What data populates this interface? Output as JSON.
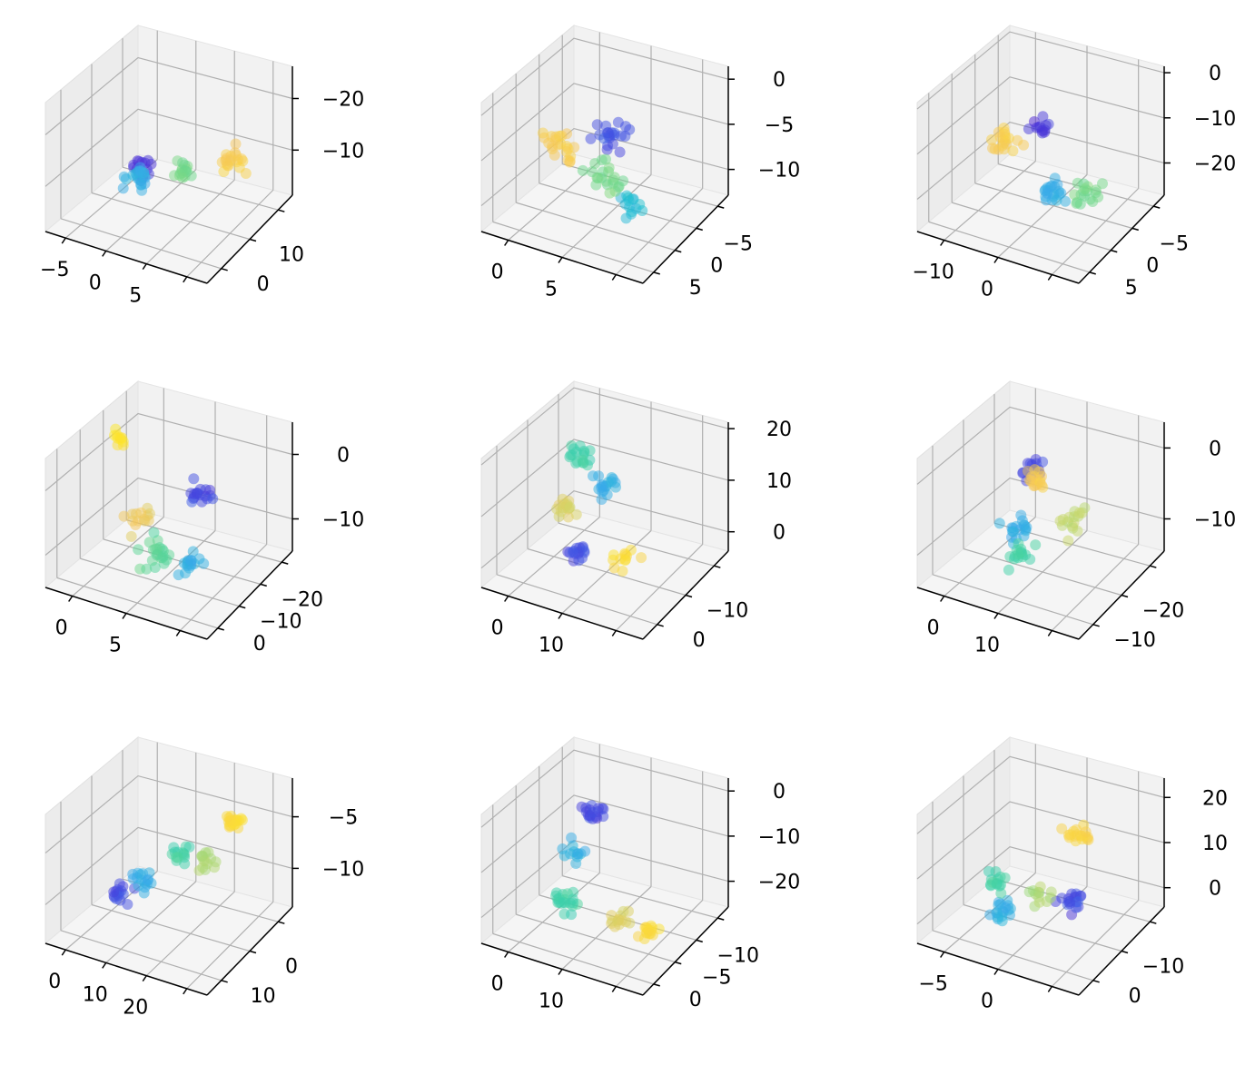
{
  "colormap": [
    "#4c1fd0",
    "#3f62e8",
    "#3fa2f0",
    "#1fc1d0",
    "#3fd1a6",
    "#7fd982",
    "#c8d86a",
    "#f6c65a",
    "#fde725"
  ],
  "chart_data": [
    {
      "type": "scatter3d",
      "title": "",
      "x_ticks": [
        "−5",
        "0",
        "5"
      ],
      "y_ticks": [
        "0",
        "10"
      ],
      "z_ticks": [
        "−10",
        "−20"
      ],
      "z_tick_levels": [
        0.35,
        0.75
      ],
      "seed": 11,
      "n_points": 70,
      "clusters": [
        {
          "c": 0.05,
          "x": 0.45,
          "y": 0.25,
          "z": 0.55,
          "s": 0.07,
          "n": 14
        },
        {
          "c": 0.3,
          "x": 0.35,
          "y": 0.35,
          "z": 0.35,
          "s": 0.07,
          "n": 20
        },
        {
          "c": 0.6,
          "x": 0.5,
          "y": 0.6,
          "z": 0.3,
          "s": 0.08,
          "n": 16
        },
        {
          "c": 0.9,
          "x": 0.75,
          "y": 0.75,
          "z": 0.4,
          "s": 0.07,
          "n": 20
        }
      ]
    },
    {
      "type": "scatter3d",
      "title": "",
      "x_ticks": [
        "0",
        "5"
      ],
      "y_ticks": [
        "5",
        "0",
        "−5"
      ],
      "z_ticks": [
        "0",
        "−5",
        "−10"
      ],
      "z_tick_levels": [
        0.9,
        0.55,
        0.2
      ],
      "seed": 23,
      "n_points": 80,
      "clusters": [
        {
          "c": 0.1,
          "x": 0.55,
          "y": 0.45,
          "z": 0.7,
          "s": 0.1,
          "n": 22
        },
        {
          "c": 0.35,
          "x": 0.75,
          "y": 0.3,
          "z": 0.35,
          "s": 0.08,
          "n": 14
        },
        {
          "c": 0.6,
          "x": 0.5,
          "y": 0.45,
          "z": 0.35,
          "s": 0.1,
          "n": 22
        },
        {
          "c": 0.9,
          "x": 0.2,
          "y": 0.5,
          "z": 0.45,
          "s": 0.1,
          "n": 22
        }
      ]
    },
    {
      "type": "scatter3d",
      "title": "",
      "x_ticks": [
        "−10",
        "0"
      ],
      "y_ticks": [
        "5",
        "0",
        "−5"
      ],
      "z_ticks": [
        "0",
        "−10",
        "−20"
      ],
      "z_tick_levels": [
        0.95,
        0.6,
        0.25
      ],
      "seed": 37,
      "n_points": 70,
      "clusters": [
        {
          "c": 0.05,
          "x": 0.5,
          "y": 0.45,
          "z": 0.75,
          "s": 0.06,
          "n": 12
        },
        {
          "c": 0.3,
          "x": 0.6,
          "y": 0.4,
          "z": 0.3,
          "s": 0.07,
          "n": 20
        },
        {
          "c": 0.6,
          "x": 0.75,
          "y": 0.5,
          "z": 0.3,
          "s": 0.08,
          "n": 18
        },
        {
          "c": 0.9,
          "x": 0.25,
          "y": 0.5,
          "z": 0.5,
          "s": 0.08,
          "n": 20
        }
      ]
    },
    {
      "type": "scatter3d",
      "title": "",
      "x_ticks": [
        "0",
        "5"
      ],
      "y_ticks": [
        "0",
        "−10",
        "−20"
      ],
      "z_ticks": [
        "0",
        "−10"
      ],
      "z_tick_levels": [
        0.75,
        0.25
      ],
      "seed": 41,
      "n_points": 80,
      "clusters": [
        {
          "c": 0.08,
          "x": 0.65,
          "y": 0.55,
          "z": 0.65,
          "s": 0.08,
          "n": 18
        },
        {
          "c": 0.3,
          "x": 0.7,
          "y": 0.35,
          "z": 0.25,
          "s": 0.08,
          "n": 16
        },
        {
          "c": 0.55,
          "x": 0.45,
          "y": 0.4,
          "z": 0.2,
          "s": 0.09,
          "n": 22
        },
        {
          "c": 0.85,
          "x": 0.3,
          "y": 0.5,
          "z": 0.35,
          "s": 0.08,
          "n": 14
        },
        {
          "c": 0.98,
          "x": 0.12,
          "y": 0.6,
          "z": 0.85,
          "s": 0.05,
          "n": 10
        }
      ]
    },
    {
      "type": "scatter3d",
      "title": "",
      "x_ticks": [
        "0",
        "10"
      ],
      "y_ticks": [
        "0",
        "−10"
      ],
      "z_ticks": [
        "20",
        "10",
        "0"
      ],
      "z_tick_levels": [
        0.95,
        0.55,
        0.15
      ],
      "seed": 53,
      "n_points": 80,
      "clusters": [
        {
          "c": 0.08,
          "x": 0.35,
          "y": 0.45,
          "z": 0.15,
          "s": 0.07,
          "n": 16
        },
        {
          "c": 0.3,
          "x": 0.45,
          "y": 0.55,
          "z": 0.65,
          "s": 0.08,
          "n": 18
        },
        {
          "c": 0.5,
          "x": 0.3,
          "y": 0.55,
          "z": 0.8,
          "s": 0.07,
          "n": 18
        },
        {
          "c": 0.8,
          "x": 0.3,
          "y": 0.4,
          "z": 0.5,
          "s": 0.07,
          "n": 16
        },
        {
          "c": 0.95,
          "x": 0.65,
          "y": 0.4,
          "z": 0.25,
          "s": 0.08,
          "n": 12
        }
      ]
    },
    {
      "type": "scatter3d",
      "title": "",
      "x_ticks": [
        "0",
        "10"
      ],
      "y_ticks": [
        "−10",
        "−20"
      ],
      "z_ticks": [
        "0",
        "−10"
      ],
      "z_tick_levels": [
        0.8,
        0.25
      ],
      "seed": 67,
      "n_points": 80,
      "clusters": [
        {
          "c": 0.08,
          "x": 0.4,
          "y": 0.55,
          "z": 0.75,
          "s": 0.07,
          "n": 14
        },
        {
          "c": 0.3,
          "x": 0.35,
          "y": 0.5,
          "z": 0.3,
          "s": 0.08,
          "n": 18
        },
        {
          "c": 0.5,
          "x": 0.4,
          "y": 0.4,
          "z": 0.15,
          "s": 0.08,
          "n": 16
        },
        {
          "c": 0.75,
          "x": 0.65,
          "y": 0.55,
          "z": 0.45,
          "s": 0.08,
          "n": 16
        },
        {
          "c": 0.9,
          "x": 0.4,
          "y": 0.6,
          "z": 0.65,
          "s": 0.06,
          "n": 16
        }
      ]
    },
    {
      "type": "scatter3d",
      "title": "",
      "x_ticks": [
        "0",
        "10",
        "20"
      ],
      "y_ticks": [
        "10",
        "0"
      ],
      "z_ticks": [
        "−5",
        "−10"
      ],
      "z_tick_levels": [
        0.7,
        0.3
      ],
      "seed": 79,
      "n_points": 80,
      "clusters": [
        {
          "c": 0.08,
          "x": 0.3,
          "y": 0.3,
          "z": 0.35,
          "s": 0.07,
          "n": 16
        },
        {
          "c": 0.3,
          "x": 0.4,
          "y": 0.35,
          "z": 0.45,
          "s": 0.07,
          "n": 16
        },
        {
          "c": 0.5,
          "x": 0.5,
          "y": 0.55,
          "z": 0.55,
          "s": 0.08,
          "n": 14
        },
        {
          "c": 0.7,
          "x": 0.6,
          "y": 0.7,
          "z": 0.45,
          "s": 0.06,
          "n": 14
        },
        {
          "c": 0.95,
          "x": 0.7,
          "y": 0.8,
          "z": 0.75,
          "s": 0.05,
          "n": 20
        }
      ]
    },
    {
      "type": "scatter3d",
      "title": "",
      "x_ticks": [
        "0",
        "10"
      ],
      "y_ticks": [
        "0",
        "−5",
        "−10"
      ],
      "z_ticks": [
        "0",
        "−10",
        "−20"
      ],
      "z_tick_levels": [
        0.9,
        0.55,
        0.2
      ],
      "seed": 83,
      "n_points": 80,
      "clusters": [
        {
          "c": 0.08,
          "x": 0.35,
          "y": 0.6,
          "z": 0.8,
          "s": 0.06,
          "n": 18
        },
        {
          "c": 0.3,
          "x": 0.3,
          "y": 0.5,
          "z": 0.55,
          "s": 0.07,
          "n": 12
        },
        {
          "c": 0.5,
          "x": 0.3,
          "y": 0.35,
          "z": 0.25,
          "s": 0.08,
          "n": 20
        },
        {
          "c": 0.8,
          "x": 0.6,
          "y": 0.45,
          "z": 0.15,
          "s": 0.07,
          "n": 14
        },
        {
          "c": 0.95,
          "x": 0.75,
          "y": 0.5,
          "z": 0.1,
          "s": 0.05,
          "n": 16
        }
      ]
    },
    {
      "type": "scatter3d",
      "title": "",
      "x_ticks": [
        "−5",
        "0"
      ],
      "y_ticks": [
        "0",
        "−10"
      ],
      "z_ticks": [
        "20",
        "10",
        "0"
      ],
      "z_tick_levels": [
        0.85,
        0.5,
        0.15
      ],
      "seed": 97,
      "n_points": 80,
      "clusters": [
        {
          "c": 0.08,
          "x": 0.7,
          "y": 0.45,
          "z": 0.35,
          "s": 0.07,
          "n": 18
        },
        {
          "c": 0.3,
          "x": 0.35,
          "y": 0.3,
          "z": 0.2,
          "s": 0.07,
          "n": 18
        },
        {
          "c": 0.5,
          "x": 0.25,
          "y": 0.4,
          "z": 0.35,
          "s": 0.07,
          "n": 14
        },
        {
          "c": 0.7,
          "x": 0.5,
          "y": 0.45,
          "z": 0.3,
          "s": 0.06,
          "n": 12
        },
        {
          "c": 0.92,
          "x": 0.65,
          "y": 0.6,
          "z": 0.75,
          "s": 0.07,
          "n": 18
        }
      ]
    }
  ]
}
